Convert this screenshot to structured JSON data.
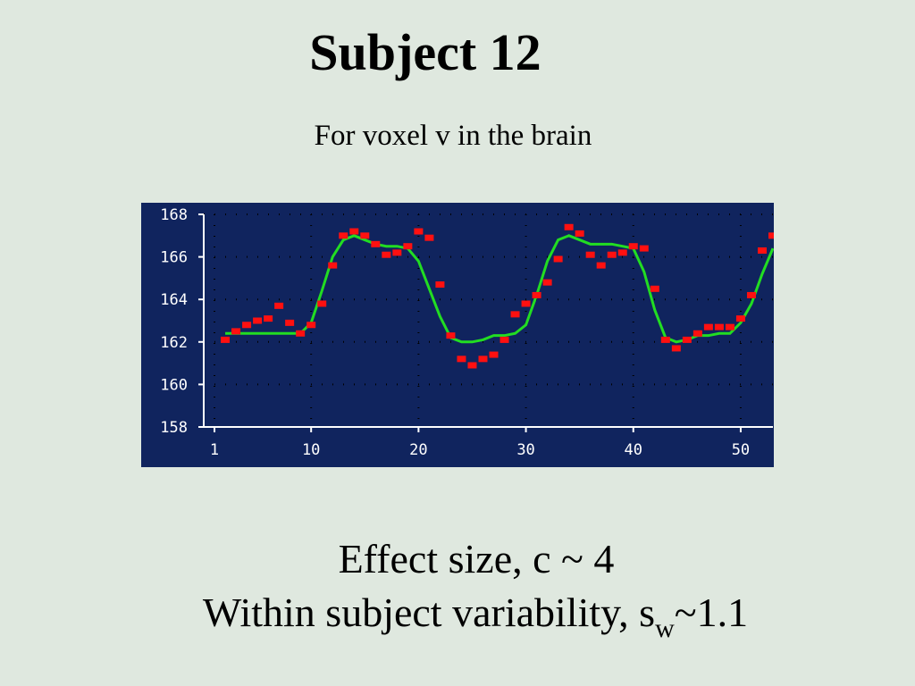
{
  "chart_data": {
    "type": "scatter",
    "title": "Subject 12",
    "subtitle": "For voxel v in the brain",
    "x": [
      2,
      3,
      4,
      5,
      6,
      7,
      8,
      9,
      10,
      11,
      12,
      13,
      14,
      15,
      16,
      17,
      18,
      19,
      20,
      21,
      22,
      23,
      24,
      25,
      26,
      27,
      28,
      29,
      30,
      31,
      32,
      33,
      34,
      35,
      36,
      37,
      38,
      39,
      40,
      41,
      42,
      43,
      44,
      45,
      46,
      47,
      48,
      49,
      50,
      51,
      52,
      53
    ],
    "series": [
      {
        "mode": "markers",
        "color": "#ff1010",
        "values": [
          162.1,
          162.5,
          162.8,
          163.0,
          163.1,
          163.7,
          162.9,
          162.4,
          162.8,
          163.8,
          165.6,
          167.0,
          167.2,
          167.0,
          166.6,
          166.1,
          166.2,
          166.5,
          167.2,
          166.9,
          164.7,
          162.3,
          161.2,
          160.9,
          161.2,
          161.4,
          162.1,
          163.3,
          163.8,
          164.2,
          164.8,
          165.9,
          167.4,
          167.1,
          166.1,
          165.6,
          166.1,
          166.2,
          166.5,
          166.4,
          164.5,
          162.1,
          161.7,
          162.1,
          162.4,
          162.7,
          162.7,
          162.7,
          163.1,
          164.2,
          166.3,
          167.0
        ]
      },
      {
        "mode": "line",
        "color": "#22dd22",
        "values": [
          162.4,
          162.4,
          162.4,
          162.4,
          162.4,
          162.4,
          162.4,
          162.4,
          162.9,
          164.4,
          166.0,
          166.8,
          167.0,
          166.8,
          166.6,
          166.5,
          166.5,
          166.4,
          165.8,
          164.5,
          163.2,
          162.2,
          162.0,
          162.0,
          162.1,
          162.3,
          162.3,
          162.4,
          162.8,
          164.2,
          165.8,
          166.8,
          167.0,
          166.8,
          166.6,
          166.6,
          166.6,
          166.5,
          166.4,
          165.3,
          163.5,
          162.2,
          162.0,
          162.1,
          162.3,
          162.3,
          162.4,
          162.4,
          162.9,
          163.8,
          165.2,
          166.4
        ]
      }
    ],
    "xlim": [
      0,
      53
    ],
    "ylim": [
      158,
      168
    ],
    "xticks": [
      1,
      10,
      20,
      30,
      40,
      50
    ],
    "yticks": [
      158,
      160,
      162,
      164,
      166,
      168
    ],
    "grid": true
  },
  "notes": {
    "line1": "Effect size, c ~ 4",
    "line2": [
      "Within subject variability, s",
      "w",
      "~1.1"
    ]
  }
}
